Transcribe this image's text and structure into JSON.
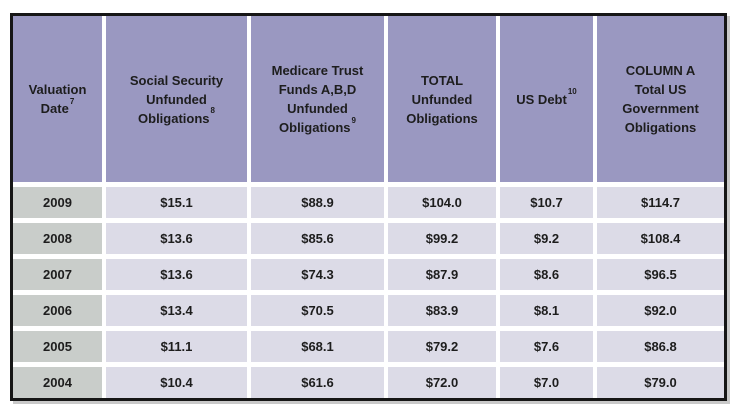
{
  "chart_data": {
    "type": "table",
    "columns": [
      {
        "lines": [
          "Valuation",
          "Date"
        ],
        "sup": "7"
      },
      {
        "lines": [
          "Social Security",
          "Unfunded",
          "Obligations"
        ],
        "sup": "8"
      },
      {
        "lines": [
          "Medicare Trust",
          "Funds A,B,D",
          "Unfunded",
          "Obligations"
        ],
        "sup": "9"
      },
      {
        "lines": [
          "TOTAL",
          "Unfunded",
          "Obligations"
        ]
      },
      {
        "lines": [
          "US Debt"
        ],
        "sup": "10"
      },
      {
        "lines": [
          "COLUMN A",
          "Total US",
          "Government",
          "Obligations"
        ]
      }
    ],
    "rows": [
      {
        "year": "2009",
        "values": [
          "$15.1",
          "$88.9",
          "$104.0",
          "$10.7",
          "$114.7"
        ]
      },
      {
        "year": "2008",
        "values": [
          "$13.6",
          "$85.6",
          "$99.2",
          "$9.2",
          "$108.4"
        ]
      },
      {
        "year": "2007",
        "values": [
          "$13.6",
          "$74.3",
          "$87.9",
          "$8.6",
          "$96.5"
        ]
      },
      {
        "year": "2006",
        "values": [
          "$13.4",
          "$70.5",
          "$83.9",
          "$8.1",
          "$92.0"
        ]
      },
      {
        "year": "2005",
        "values": [
          "$11.1",
          "$68.1",
          "$79.2",
          "$7.6",
          "$86.8"
        ]
      },
      {
        "year": "2004",
        "values": [
          "$10.4",
          "$61.6",
          "$72.0",
          "$7.0",
          "$79.0"
        ]
      }
    ]
  },
  "colors": {
    "header_bg": "#9a98c1",
    "year_column_bg": "#c9cdca",
    "value_cell_bg": "#dcdbe7",
    "cell_gap": "#ffffff",
    "table_border": "#161616",
    "text": "#1d1d1d",
    "shadow": "#c9c9c9"
  }
}
